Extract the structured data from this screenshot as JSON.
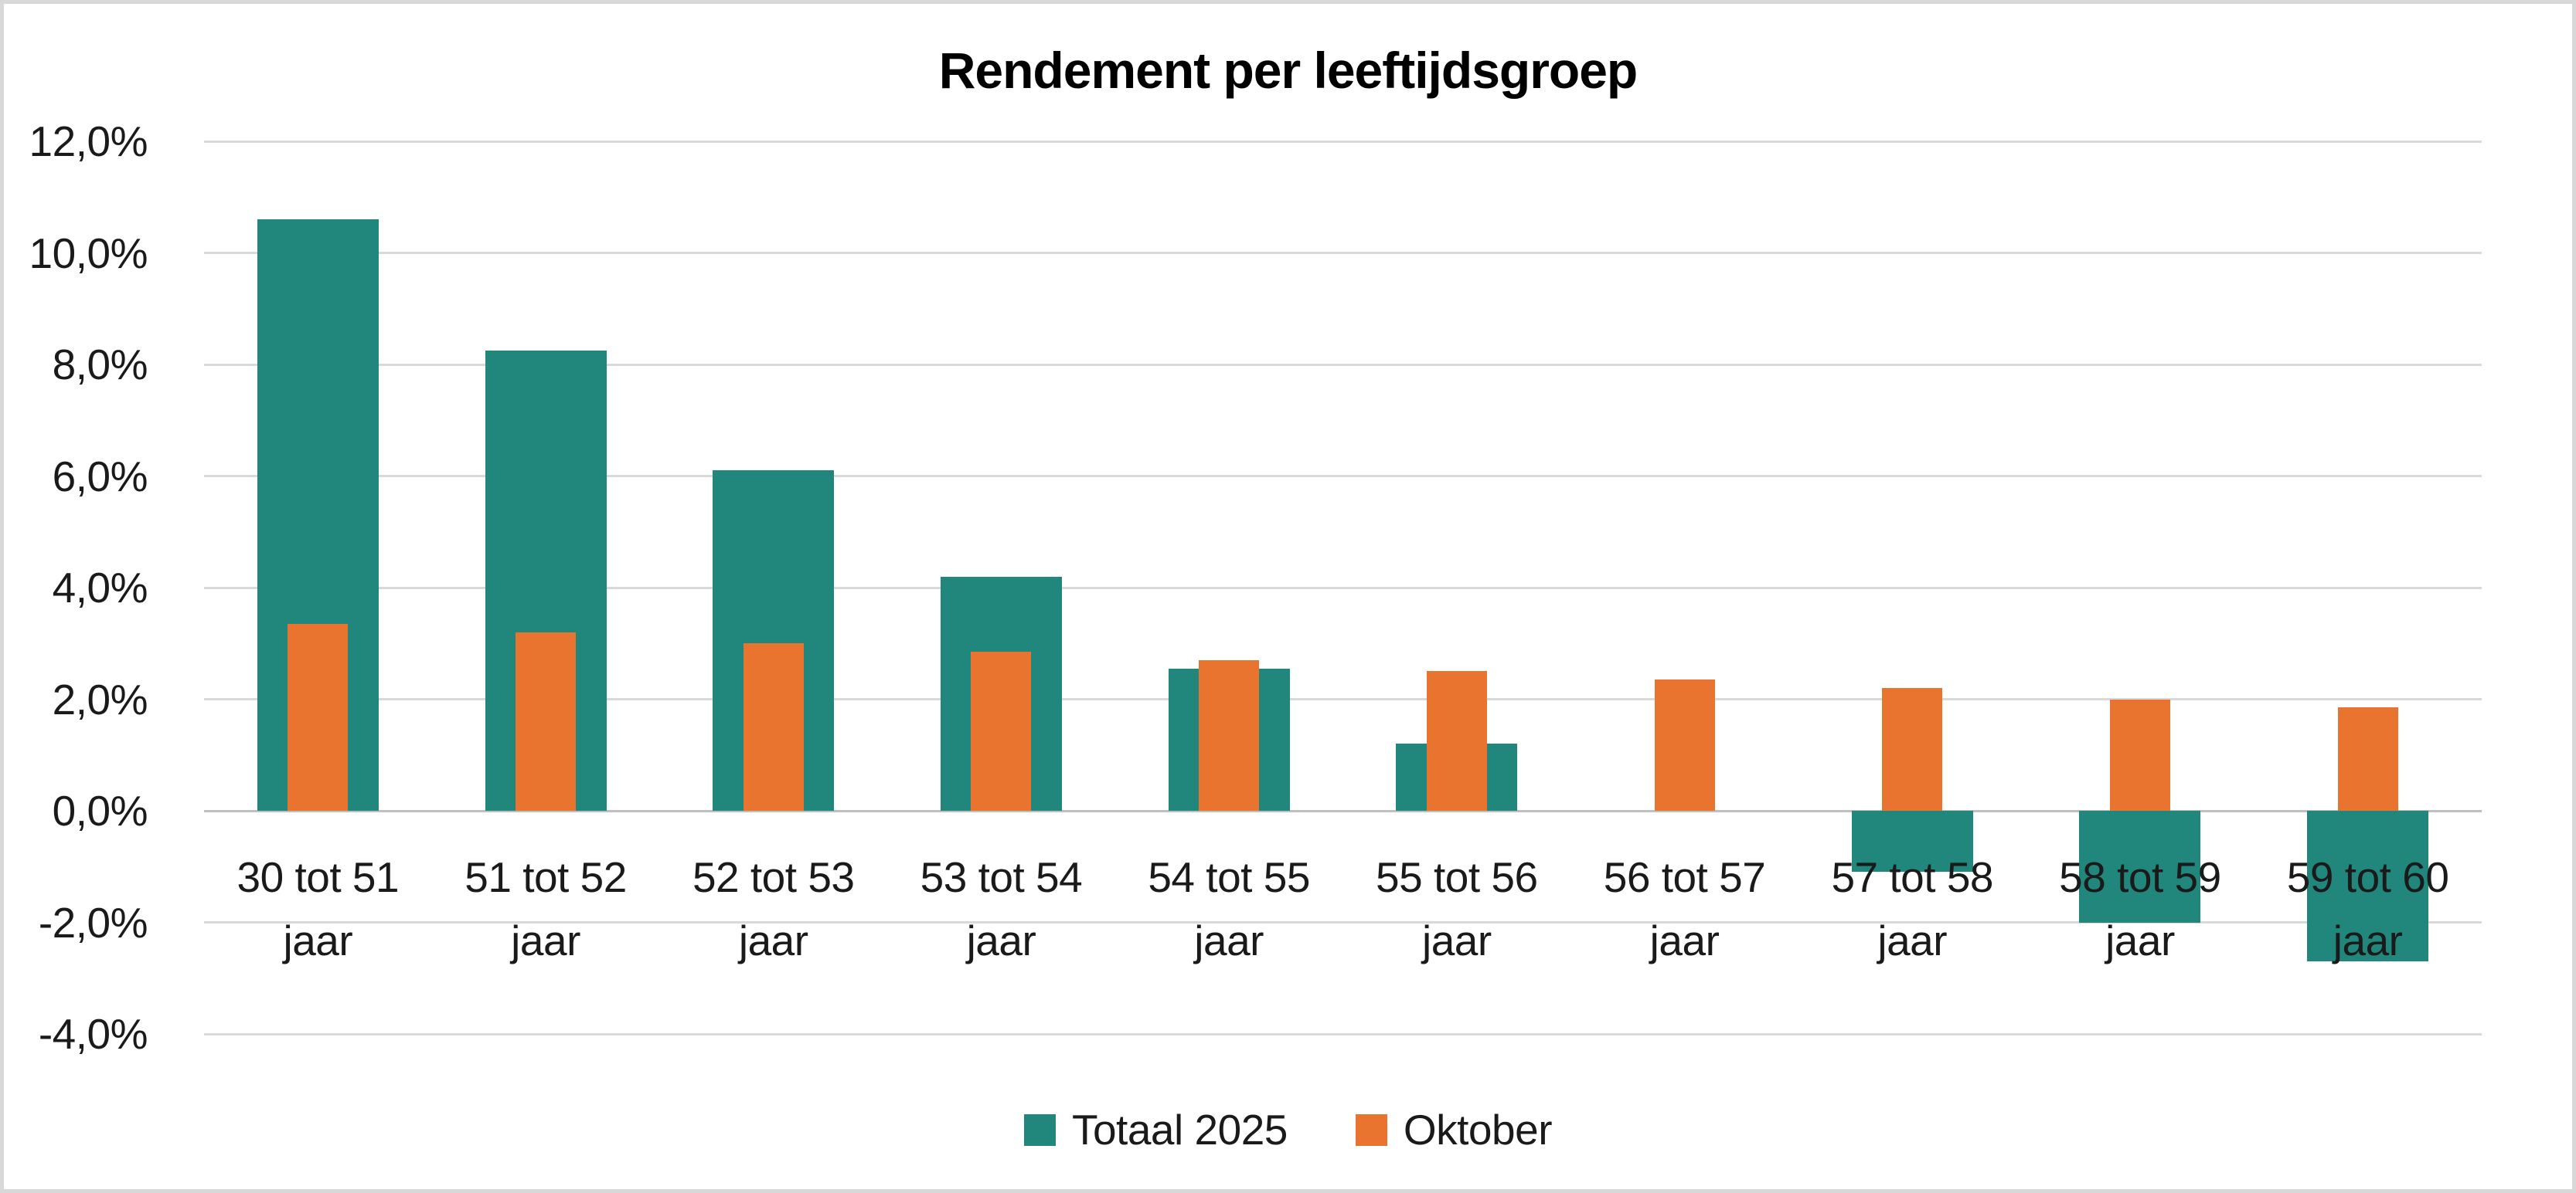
{
  "chart_data": {
    "type": "bar",
    "title": "Rendement per leeftijdsgroep",
    "categories": [
      {
        "label": "30 tot 51 jaar",
        "lines": [
          "30 tot 51",
          "jaar"
        ]
      },
      {
        "label": "51 tot 52 jaar",
        "lines": [
          "51 tot 52",
          "jaar"
        ]
      },
      {
        "label": "52 tot 53 jaar",
        "lines": [
          "52 tot 53",
          "jaar"
        ]
      },
      {
        "label": "53 tot 54 jaar",
        "lines": [
          "53 tot 54",
          "jaar"
        ]
      },
      {
        "label": "54 tot 55 jaar",
        "lines": [
          "54 tot 55",
          "jaar"
        ]
      },
      {
        "label": "55 tot 56 jaar",
        "lines": [
          "55 tot 56",
          "jaar"
        ]
      },
      {
        "label": "56 tot 57 jaar",
        "lines": [
          "56 tot 57",
          "jaar"
        ]
      },
      {
        "label": "57 tot 58 jaar",
        "lines": [
          "57 tot 58",
          "jaar"
        ]
      },
      {
        "label": "58 tot 59 jaar",
        "lines": [
          "58 tot 59",
          "jaar"
        ]
      },
      {
        "label": "59 tot 60 jaar",
        "lines": [
          "59 tot 60",
          "jaar"
        ]
      }
    ],
    "series": [
      {
        "name": "Totaal 2025",
        "id": "totaal-2025",
        "color": "#21867B",
        "values": [
          10.6,
          8.25,
          6.1,
          4.2,
          2.55,
          1.2,
          0,
          -1.1,
          -2.0,
          -2.7
        ]
      },
      {
        "name": "Oktober",
        "id": "oktober",
        "color": "#E8742F",
        "values": [
          3.35,
          3.2,
          3.0,
          2.85,
          2.7,
          2.5,
          2.35,
          2.2,
          2.0,
          1.85
        ]
      }
    ],
    "y_axis": {
      "unit": "%",
      "range": [
        -4,
        12
      ],
      "tick_step": 2,
      "grid": true,
      "ticks": [
        {
          "label": "12,0%",
          "value": 12
        },
        {
          "label": "10,0%",
          "value": 10
        },
        {
          "label": "8,0%",
          "value": 8
        },
        {
          "label": "6,0%",
          "value": 6
        },
        {
          "label": "4,0%",
          "value": 4
        },
        {
          "label": "2,0%",
          "value": 2
        },
        {
          "label": "0,0%",
          "value": 0
        },
        {
          "label": "-2,0%",
          "value": -2
        },
        {
          "label": "-4,0%",
          "value": -4
        }
      ]
    },
    "legend": {
      "position": "bottom",
      "entries": [
        "Totaal 2025",
        "Oktober"
      ]
    },
    "colors": {
      "gridline": "#D9D9D9",
      "zero_line": "#C0C0C0",
      "chart_border": "#D8D8D8",
      "text": "#1A1A1A",
      "title_text": "#000000",
      "background": "#FFFFFF"
    }
  }
}
